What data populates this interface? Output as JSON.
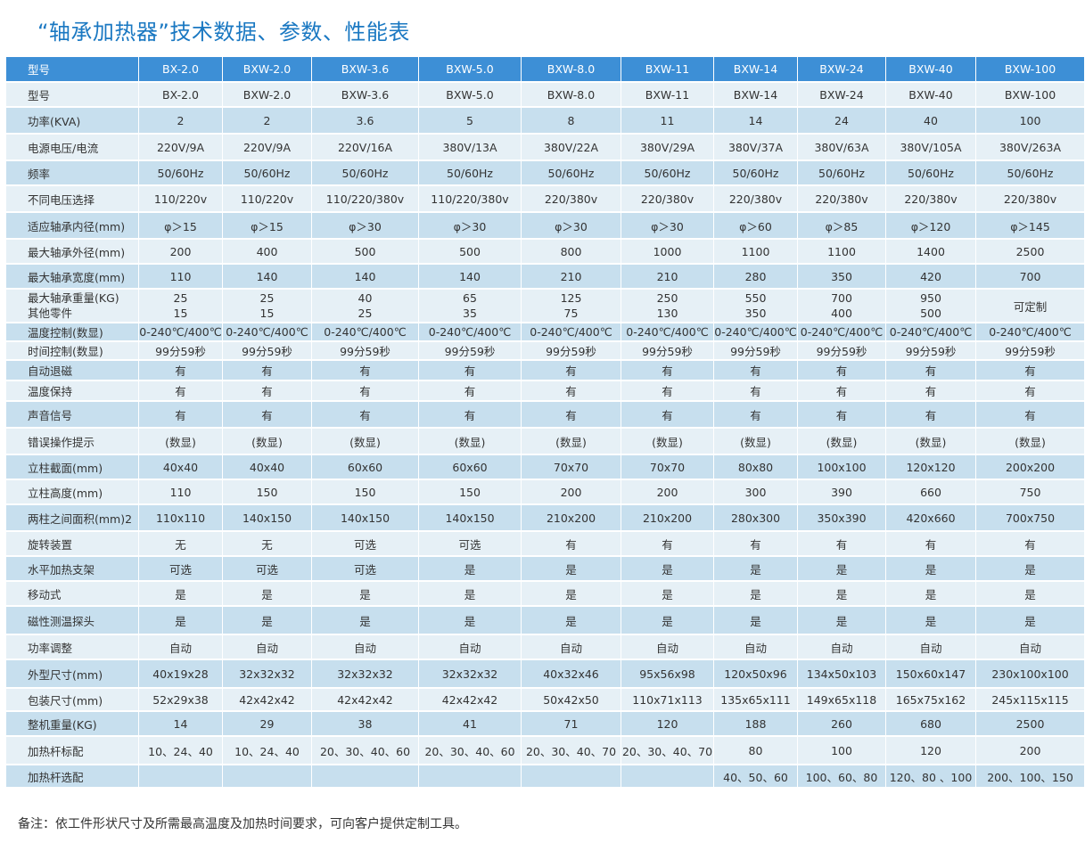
{
  "title": "“轴承加热器”技术数据、参数、性能表",
  "table": {
    "header": [
      "型号",
      "BX-2.0",
      "BXW-2.0",
      "BXW-3.6",
      "BXW-5.0",
      "BXW-8.0",
      "BXW-11",
      "BXW-14",
      "BXW-24",
      "BXW-40",
      "BXW-100"
    ],
    "rows": [
      {
        "label": "型号",
        "cells": [
          "BX-2.0",
          "BXW-2.0",
          "BXW-3.6",
          "BXW-5.0",
          "BXW-8.0",
          "BXW-11",
          "BXW-14",
          "BXW-24",
          "BXW-40",
          "BXW-100"
        ]
      },
      {
        "label": "功率(KVA)",
        "cells": [
          "2",
          "2",
          "3.6",
          "5",
          "8",
          "11",
          "14",
          "24",
          "40",
          "100"
        ]
      },
      {
        "label": "电源电压/电流",
        "cells": [
          "220V/9A",
          "220V/9A",
          "220V/16A",
          "380V/13A",
          "380V/22A",
          "380V/29A",
          "380V/37A",
          "380V/63A",
          "380V/105A",
          "380V/263A"
        ]
      },
      {
        "label": "频率",
        "cells": [
          "50/60Hz",
          "50/60Hz",
          "50/60Hz",
          "50/60Hz",
          "50/60Hz",
          "50/60Hz",
          "50/60Hz",
          "50/60Hz",
          "50/60Hz",
          "50/60Hz"
        ]
      },
      {
        "label": "不同电压选择",
        "cells": [
          "110/220v",
          "110/220v",
          "110/220/380v",
          "110/220/380v",
          "220/380v",
          "220/380v",
          "220/380v",
          "220/380v",
          "220/380v",
          "220/380v"
        ]
      },
      {
        "label": "适应轴承内径(mm)",
        "cells": [
          "φ＞15",
          "φ＞15",
          "φ＞30",
          "φ＞30",
          "φ＞30",
          "φ＞30",
          "φ＞60",
          "φ＞85",
          "φ＞120",
          "φ＞145"
        ]
      },
      {
        "label": "最大轴承外径(mm)",
        "cells": [
          "200",
          "400",
          "500",
          "500",
          "800",
          "1000",
          "1100",
          "1100",
          "1400",
          "2500"
        ]
      },
      {
        "label": "最大轴承宽度(mm)",
        "cells": [
          "110",
          "140",
          "140",
          "140",
          "210",
          "210",
          "280",
          "350",
          "420",
          "700"
        ]
      }
    ],
    "weight_row": {
      "label_1": "最大轴承重量(KG)",
      "label_2": "其他零件",
      "cells_1": [
        "25",
        "25",
        "40",
        "65",
        "125",
        "250",
        "550",
        "700",
        "950"
      ],
      "cells_2": [
        "15",
        "15",
        "25",
        "35",
        "75",
        "130",
        "350",
        "400",
        "500"
      ],
      "last": "可定制"
    },
    "rows2": [
      {
        "label": "温度控制(数显)",
        "cells": [
          "0-240℃/400℃",
          "0-240℃/400℃",
          "0-240℃/400℃",
          "0-240℃/400℃",
          "0-240℃/400℃",
          "0-240℃/400℃",
          "0-240℃/400℃",
          "0-240℃/400℃",
          "0-240℃/400℃",
          "0-240℃/400℃"
        ]
      },
      {
        "label": "时间控制(数显)",
        "cells": [
          "99分59秒",
          "99分59秒",
          "99分59秒",
          "99分59秒",
          "99分59秒",
          "99分59秒",
          "99分59秒",
          "99分59秒",
          "99分59秒",
          "99分59秒"
        ]
      },
      {
        "label": "自动退磁",
        "cells": [
          "有",
          "有",
          "有",
          "有",
          "有",
          "有",
          "有",
          "有",
          "有",
          "有"
        ]
      },
      {
        "label": "温度保持",
        "cells": [
          "有",
          "有",
          "有",
          "有",
          "有",
          "有",
          "有",
          "有",
          "有",
          "有"
        ]
      },
      {
        "label": "声音信号",
        "cells": [
          "有",
          "有",
          "有",
          "有",
          "有",
          "有",
          "有",
          "有",
          "有",
          "有"
        ]
      },
      {
        "label": "错误操作提示",
        "cells": [
          "(数显)",
          "(数显)",
          "(数显)",
          "(数显)",
          "(数显)",
          "(数显)",
          "(数显)",
          "(数显)",
          "(数显)",
          "(数显)"
        ]
      },
      {
        "label": "立柱截面(mm)",
        "cells": [
          "40x40",
          "40x40",
          "60x60",
          "60x60",
          "70x70",
          "70x70",
          "80x80",
          "100x100",
          "120x120",
          "200x200"
        ]
      },
      {
        "label": "立柱高度(mm)",
        "cells": [
          "110",
          "150",
          "150",
          "150",
          "200",
          "200",
          "300",
          "390",
          "660",
          "750"
        ]
      },
      {
        "label": "两柱之间面积(mm)2",
        "cells": [
          "110x110",
          "140x150",
          "140x150",
          "140x150",
          "210x200",
          "210x200",
          "280x300",
          "350x390",
          "420x660",
          "700x750"
        ]
      },
      {
        "label": "旋转装置",
        "cells": [
          "无",
          "无",
          "可选",
          "可选",
          "有",
          "有",
          "有",
          "有",
          "有",
          "有"
        ]
      },
      {
        "label": "水平加热支架",
        "cells": [
          "可选",
          "可选",
          "可选",
          "是",
          "是",
          "是",
          "是",
          "是",
          "是",
          "是"
        ]
      },
      {
        "label": "移动式",
        "cells": [
          "是",
          "是",
          "是",
          "是",
          "是",
          "是",
          "是",
          "是",
          "是",
          "是"
        ]
      },
      {
        "label": "磁性测温探头",
        "cells": [
          "是",
          "是",
          "是",
          "是",
          "是",
          "是",
          "是",
          "是",
          "是",
          "是"
        ]
      },
      {
        "label": "功率调整",
        "cells": [
          "自动",
          "自动",
          "自动",
          "自动",
          "自动",
          "自动",
          "自动",
          "自动",
          "自动",
          "自动"
        ]
      },
      {
        "label": "外型尺寸(mm)",
        "cells": [
          "40x19x28",
          "32x32x32",
          "32x32x32",
          "32x32x32",
          "40x32x46",
          "95x56x98",
          "120x50x96",
          "134x50x103",
          "150x60x147",
          "230x100x100"
        ]
      },
      {
        "label": "包装尺寸(mm)",
        "cells": [
          "52x29x38",
          "42x42x42",
          "42x42x42",
          "42x42x42",
          "50x42x50",
          "110x71x113",
          "135x65x111",
          "149x65x118",
          "165x75x162",
          "245x115x115"
        ]
      },
      {
        "label": "整机重量(KG)",
        "cells": [
          "14",
          "29",
          "38",
          "41",
          "71",
          "120",
          "188",
          "260",
          "680",
          "2500"
        ]
      },
      {
        "label": "加热杆标配",
        "cells": [
          "10、24、40",
          "10、24、40",
          "20、30、40、60",
          "20、30、40、60",
          "20、30、40、70",
          "20、30、40、70",
          "80",
          "100",
          "120",
          "200"
        ]
      },
      {
        "label": "加热杆选配",
        "cells": [
          "",
          "",
          "",
          "",
          "",
          "",
          "40、50、60",
          "100、60、80",
          "120、80 、100",
          "200、100、150"
        ]
      }
    ]
  },
  "note": "备注：依工件形状尺寸及所需最高温度及加热时间要求，可向客户提供定制工具。",
  "colors": {
    "title": "#1a78c2",
    "header_bg": "#3d8fd6",
    "row_shade": "#c7dfee",
    "row_light": "#e6f0f6"
  }
}
